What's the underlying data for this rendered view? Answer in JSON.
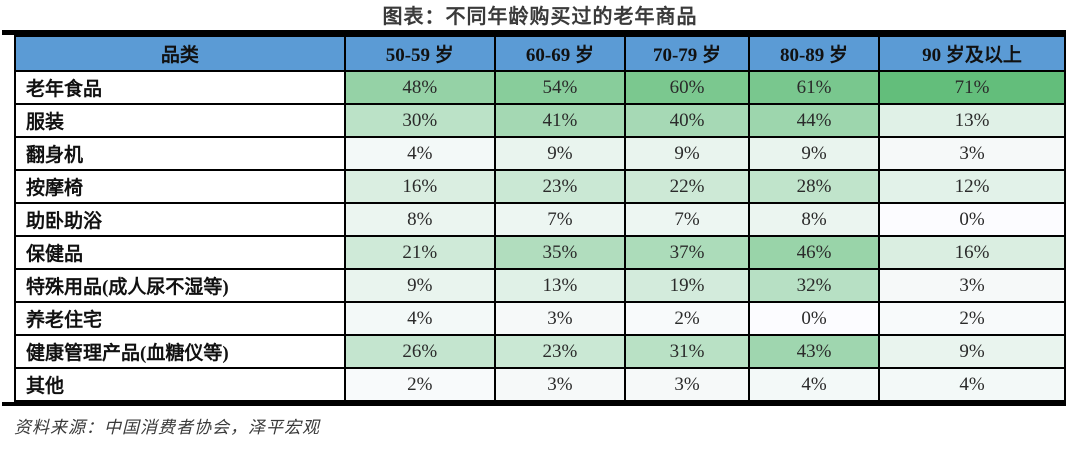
{
  "title": "图表：不同年龄购买过的老年商品",
  "source": "资料来源：中国消费者协会，泽平宏观",
  "colors": {
    "header_bg": "#5B9BD5",
    "heat_min": "#FCFCFF",
    "heat_max": "#63BE7B",
    "border": "#000000",
    "text": "#111111"
  },
  "chart_data": {
    "type": "heatmap",
    "title": "图表：不同年龄购买过的老年商品",
    "category_header": "品类",
    "columns": [
      "50-59 岁",
      "60-69 岁",
      "70-79 岁",
      "80-89 岁",
      "90 岁及以上"
    ],
    "rows": [
      {
        "label": "老年食品",
        "values": [
          48,
          54,
          60,
          61,
          71
        ]
      },
      {
        "label": "服装",
        "values": [
          30,
          41,
          40,
          44,
          13
        ]
      },
      {
        "label": "翻身机",
        "values": [
          4,
          9,
          9,
          9,
          3
        ]
      },
      {
        "label": "按摩椅",
        "values": [
          16,
          23,
          22,
          28,
          12
        ]
      },
      {
        "label": "助卧助浴",
        "values": [
          8,
          7,
          7,
          8,
          0
        ]
      },
      {
        "label": "保健品",
        "values": [
          21,
          35,
          37,
          46,
          16
        ]
      },
      {
        "label": "特殊用品(成人尿不湿等)",
        "values": [
          9,
          13,
          19,
          32,
          3
        ]
      },
      {
        "label": "养老住宅",
        "values": [
          4,
          3,
          2,
          0,
          2
        ]
      },
      {
        "label": "健康管理产品(血糖仪等)",
        "values": [
          26,
          23,
          31,
          43,
          9
        ]
      },
      {
        "label": "其他",
        "values": [
          2,
          3,
          3,
          4,
          4
        ]
      }
    ],
    "unit": "%",
    "value_suffix": "%",
    "color_scale": {
      "min_value": 0,
      "max_value": 71,
      "min_color": "#FCFCFF",
      "max_color": "#63BE7B"
    },
    "column_widths_pct": [
      31.4,
      14.3,
      12.4,
      11.8,
      12.4,
      17.7
    ],
    "legend_position": "none",
    "grid": true
  }
}
